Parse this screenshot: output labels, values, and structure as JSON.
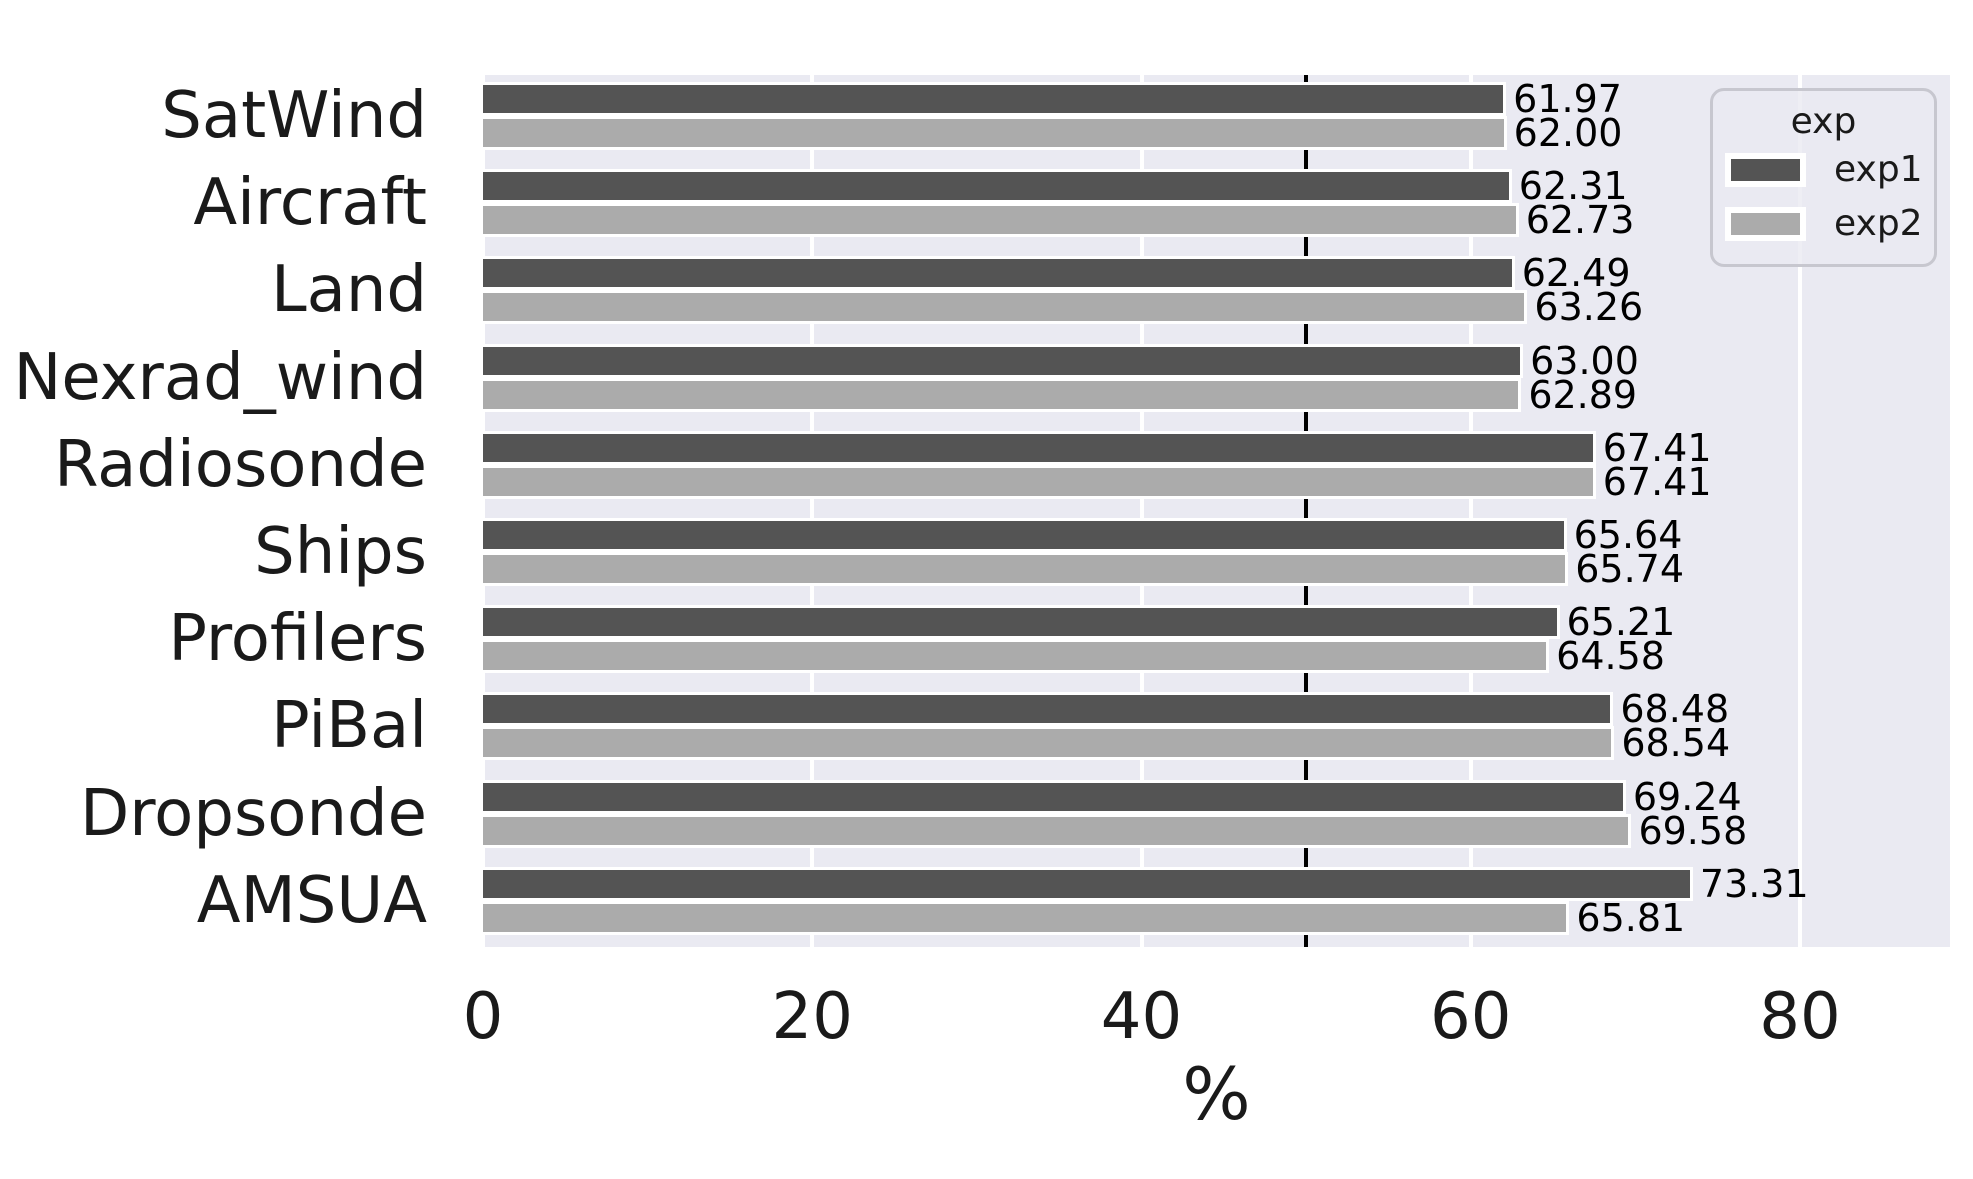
{
  "chart_data": {
    "type": "bar",
    "orientation": "horizontal",
    "title": "",
    "xlabel": "%",
    "ylabel": "",
    "categories": [
      "SatWind",
      "Aircraft",
      "Land",
      "Nexrad_wind",
      "Radiosonde",
      "Ships",
      "Profilers",
      "PiBal",
      "Dropsonde",
      "AMSUA"
    ],
    "series": [
      {
        "name": "exp1",
        "color": "#545454",
        "values": [
          61.97,
          62.31,
          62.49,
          63.0,
          67.41,
          65.64,
          65.21,
          68.48,
          69.24,
          73.31
        ]
      },
      {
        "name": "exp2",
        "color": "#ababab",
        "values": [
          62.0,
          62.73,
          63.26,
          62.89,
          67.41,
          65.74,
          64.58,
          68.54,
          69.58,
          65.81
        ]
      }
    ],
    "x_ticks": [
      0,
      20,
      40,
      60,
      80
    ],
    "xlim": [
      0,
      89.1
    ],
    "reference_line_x": 50,
    "value_label_decimals": 2,
    "grid": "vertical-white",
    "legend": {
      "title": "exp",
      "entries": [
        "exp1",
        "exp2"
      ],
      "position": "upper-right"
    },
    "colors": {
      "plot_background": "#eaeaf2",
      "figure_background": "#ffffff",
      "gridline": "#ffffff",
      "reference_line": "#000000",
      "text": "#1a1a1a",
      "bar_edge": "#ffffff"
    }
  }
}
